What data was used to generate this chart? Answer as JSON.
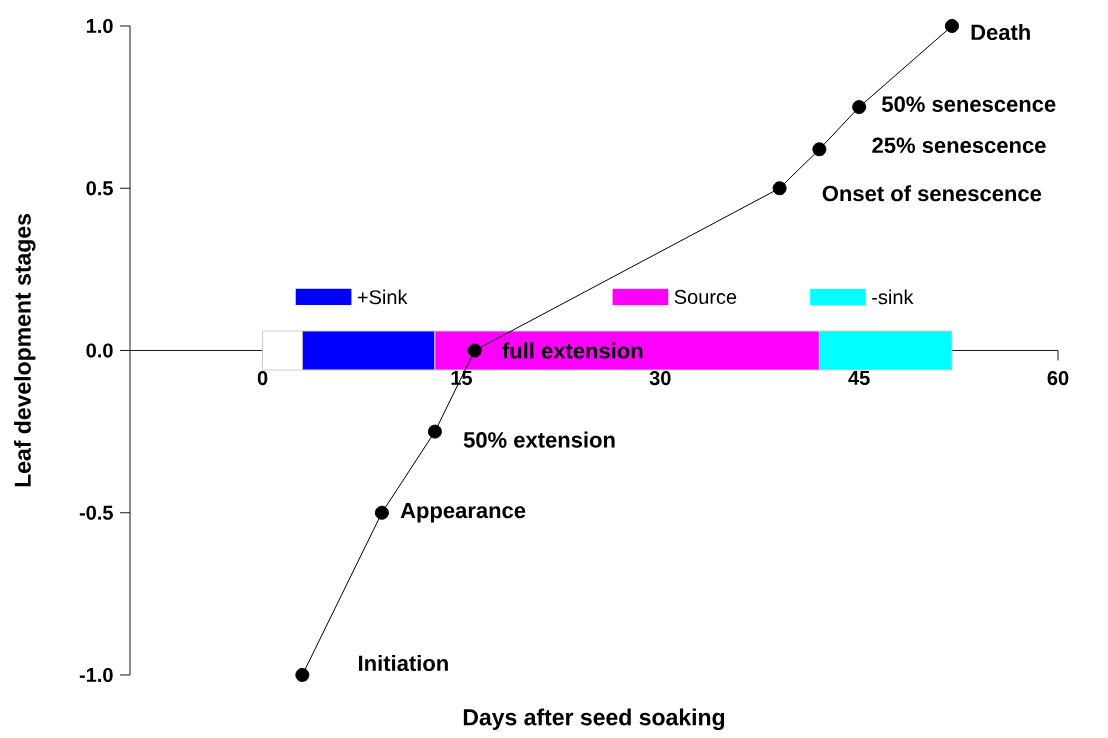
{
  "chart_data": {
    "type": "line",
    "xlabel": "Days after seed soaking",
    "ylabel": "Leaf development stages",
    "x": [
      3,
      9,
      13,
      16,
      39,
      42,
      45,
      52
    ],
    "values": [
      -1.0,
      -0.5,
      -0.25,
      0.0,
      0.5,
      0.62,
      0.75,
      1.0
    ],
    "color": "#000000",
    "marker": "circle",
    "line_style": "solid",
    "xlim": [
      -10,
      60
    ],
    "xticks": [
      0,
      15,
      30,
      45,
      60
    ],
    "ylim": [
      -1,
      1
    ],
    "yticks": [
      {
        "value": -1,
        "label": "-1.0"
      },
      {
        "value": -0.5,
        "label": "-0.5"
      },
      {
        "value": 0,
        "label": "0.0"
      },
      {
        "value": 0.5,
        "label": "0.5"
      },
      {
        "value": 1,
        "label": "1.0"
      }
    ],
    "bands": [
      {
        "axis": "x",
        "from": 0,
        "to": 3,
        "color": "#ffffff"
      },
      {
        "axis": "x",
        "from": 3,
        "to": 13,
        "label": "+Sink",
        "color": "#0000ff"
      },
      {
        "axis": "x",
        "from": 13,
        "to": 42,
        "label": "Source",
        "color": "#ff00ff"
      },
      {
        "axis": "x",
        "from": 42,
        "to": 52,
        "label": "-sink",
        "color": "#00ffff"
      }
    ],
    "legend": "top",
    "annotations": [
      {
        "text": "Initiation",
        "x": 3,
        "y": -1.0
      },
      {
        "text": "Appearance",
        "x": 9,
        "y": -0.5
      },
      {
        "text": "50% extension",
        "x": 13,
        "y": -0.25
      },
      {
        "text": "full extension",
        "x": 16,
        "y": 0.0
      },
      {
        "text": "Onset of senescence",
        "x": 39,
        "y": 0.5
      },
      {
        "text": "25% senescence",
        "x": 42,
        "y": 0.62
      },
      {
        "text": "50% senescence",
        "x": 45,
        "y": 0.75
      },
      {
        "text": "Death",
        "x": 52,
        "y": 1.0
      }
    ],
    "grid": false
  }
}
